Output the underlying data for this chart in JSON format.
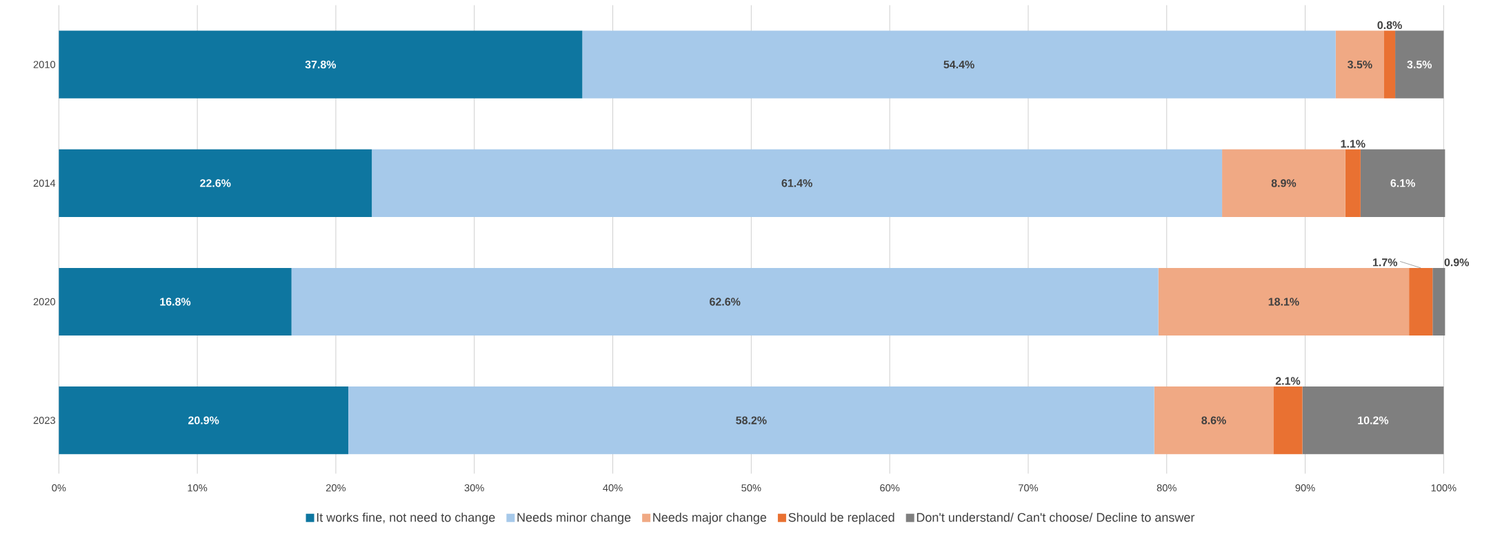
{
  "chart_data": {
    "type": "bar",
    "orientation": "horizontal",
    "stacked": true,
    "categories": [
      "2010",
      "2014",
      "2020",
      "2023"
    ],
    "series": [
      {
        "name": "It works fine, not need to change",
        "color": "#0e76a0",
        "values": [
          37.8,
          22.6,
          16.8,
          20.9
        ],
        "value_labels": [
          "37.8%",
          "22.6%",
          "16.8%",
          "20.9%"
        ]
      },
      {
        "name": "Needs minor change",
        "color": "#a6c9ea",
        "values": [
          54.4,
          61.4,
          62.6,
          58.2
        ],
        "value_labels": [
          "54.4%",
          "61.4%",
          "62.6%",
          "58.2%"
        ]
      },
      {
        "name": "Needs major change",
        "color": "#f0a984",
        "values": [
          3.5,
          8.9,
          18.1,
          8.6
        ],
        "value_labels": [
          "3.5%",
          "8.9%",
          "18.1%",
          "8.6%"
        ]
      },
      {
        "name": "Should be replaced",
        "color": "#e97132",
        "values": [
          0.8,
          1.1,
          1.7,
          2.1
        ],
        "value_labels": [
          "0.8%",
          "1.1%",
          "1.7%",
          "2.1%"
        ]
      },
      {
        "name": "Don't understand/ Can't choose/ Decline to answer",
        "color": "#7f7f7f",
        "values": [
          3.5,
          6.1,
          0.9,
          10.2
        ],
        "value_labels": [
          "3.5%",
          "6.1%",
          "0.9%",
          "10.2%"
        ]
      }
    ],
    "xlim": [
      0,
      100
    ],
    "xticks": [
      {
        "value": 0,
        "label": "0%"
      },
      {
        "value": 10,
        "label": "10%"
      },
      {
        "value": 20,
        "label": "20%"
      },
      {
        "value": 30,
        "label": "30%"
      },
      {
        "value": 40,
        "label": "40%"
      },
      {
        "value": 50,
        "label": "50%"
      },
      {
        "value": 60,
        "label": "60%"
      },
      {
        "value": 70,
        "label": "70%"
      },
      {
        "value": 80,
        "label": "80%"
      },
      {
        "value": 90,
        "label": "90%"
      },
      {
        "value": 100,
        "label": "100%"
      }
    ],
    "grid": "x",
    "legend": "bottom"
  }
}
